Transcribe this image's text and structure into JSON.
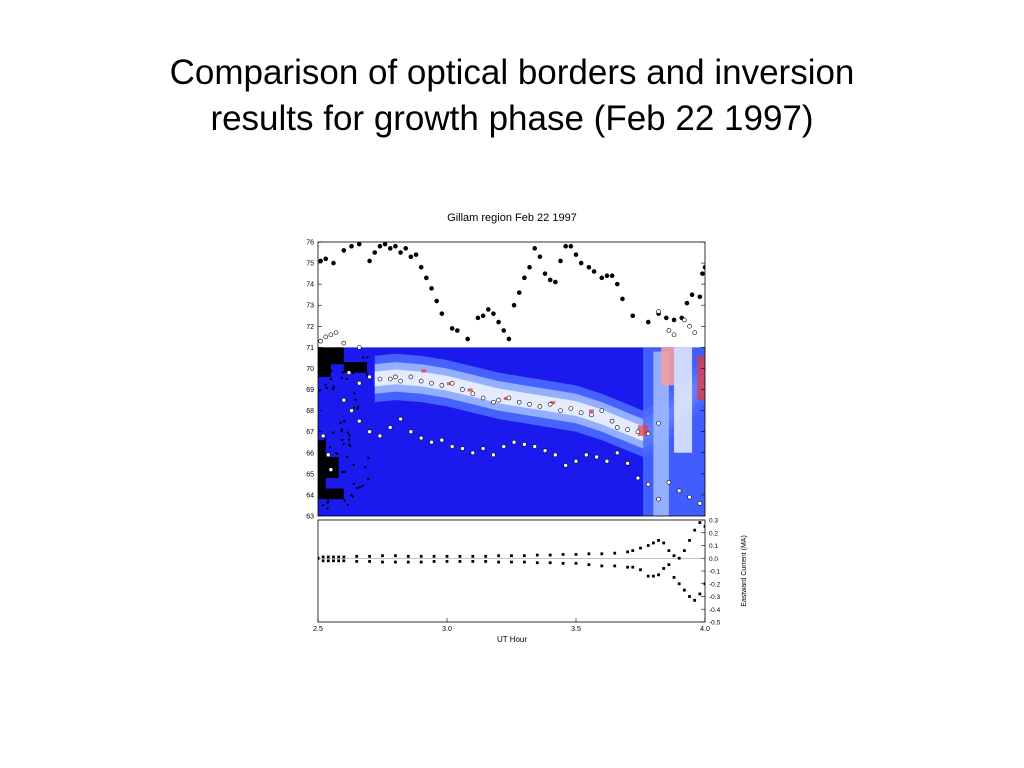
{
  "slide": {
    "title_line1": "Comparison of optical borders and inversion",
    "title_line2": "results for growth phase (Feb 22 1997)"
  },
  "chart_data": {
    "type": "scatter",
    "title": "Gillam region Feb 22 1997",
    "xlabel": "UT Hour",
    "xlim": [
      2.5,
      4.0
    ],
    "x_ticks": [
      "2.5",
      "3.0",
      "3.5",
      "4.0"
    ],
    "colors": {
      "background_blue": "#1a1aee",
      "mid_blue": "#4a6aff",
      "light_blue": "#9db8ff",
      "white_band": "#e8eeff",
      "red": "#e83a3a",
      "pink": "#f2a0a0"
    },
    "top_panel": {
      "ylim": [
        63,
        76
      ],
      "y_ticks": [
        "63",
        "64",
        "65",
        "66",
        "67",
        "68",
        "69",
        "70",
        "71",
        "72",
        "73",
        "74",
        "75",
        "76"
      ],
      "image_extent": {
        "x": [
          2.5,
          4.0
        ],
        "y": [
          63,
          71
        ]
      },
      "band_centerline": {
        "x": [
          2.72,
          2.8,
          2.9,
          3.0,
          3.1,
          3.2,
          3.3,
          3.4,
          3.5,
          3.6,
          3.7,
          3.76,
          3.82,
          3.88,
          3.95,
          4.0
        ],
        "y": [
          69.5,
          69.6,
          69.5,
          69.3,
          69.0,
          68.7,
          68.5,
          68.3,
          68.1,
          67.7,
          67.2,
          66.9,
          67.3,
          68.0,
          68.8,
          69.5
        ]
      },
      "series": [
        {
          "name": "",
          "marker": "filled",
          "points": [
            [
              2.51,
              75.1
            ],
            [
              2.53,
              75.2
            ],
            [
              2.56,
              75.0
            ],
            [
              2.6,
              75.6
            ],
            [
              2.63,
              75.8
            ],
            [
              2.66,
              75.9
            ],
            [
              2.7,
              75.1
            ],
            [
              2.72,
              75.5
            ],
            [
              2.74,
              75.8
            ],
            [
              2.76,
              75.9
            ],
            [
              2.78,
              75.7
            ],
            [
              2.8,
              75.8
            ],
            [
              2.82,
              75.5
            ],
            [
              2.84,
              75.7
            ],
            [
              2.86,
              75.3
            ],
            [
              2.88,
              75.4
            ],
            [
              2.9,
              74.8
            ],
            [
              2.92,
              74.3
            ],
            [
              2.94,
              73.8
            ],
            [
              2.96,
              73.2
            ],
            [
              2.98,
              72.6
            ],
            [
              3.02,
              71.9
            ],
            [
              3.04,
              71.8
            ],
            [
              3.08,
              71.4
            ],
            [
              3.12,
              72.4
            ],
            [
              3.14,
              72.5
            ],
            [
              3.16,
              72.8
            ],
            [
              3.18,
              72.6
            ],
            [
              3.2,
              72.2
            ],
            [
              3.22,
              71.8
            ],
            [
              3.24,
              71.4
            ],
            [
              3.26,
              73.0
            ],
            [
              3.28,
              73.6
            ],
            [
              3.3,
              74.3
            ],
            [
              3.32,
              74.8
            ],
            [
              3.34,
              75.7
            ],
            [
              3.36,
              75.3
            ],
            [
              3.38,
              74.5
            ],
            [
              3.4,
              74.2
            ],
            [
              3.42,
              74.1
            ],
            [
              3.44,
              75.1
            ],
            [
              3.46,
              75.8
            ],
            [
              3.48,
              75.8
            ],
            [
              3.5,
              75.4
            ],
            [
              3.52,
              75.0
            ],
            [
              3.55,
              74.8
            ],
            [
              3.57,
              74.6
            ],
            [
              3.6,
              74.3
            ],
            [
              3.62,
              74.4
            ],
            [
              3.64,
              74.4
            ],
            [
              3.66,
              74.0
            ],
            [
              3.68,
              73.3
            ],
            [
              3.72,
              72.5
            ],
            [
              3.78,
              72.2
            ],
            [
              3.82,
              72.6
            ],
            [
              3.85,
              72.4
            ],
            [
              3.88,
              72.3
            ],
            [
              3.91,
              72.4
            ],
            [
              3.93,
              73.1
            ],
            [
              3.95,
              73.5
            ],
            [
              3.98,
              73.4
            ],
            [
              3.99,
              74.5
            ],
            [
              4.0,
              74.8
            ]
          ]
        },
        {
          "name": "",
          "marker": "open",
          "points": [
            [
              2.51,
              71.3
            ],
            [
              2.53,
              71.5
            ],
            [
              2.55,
              71.6
            ],
            [
              2.57,
              71.7
            ],
            [
              2.6,
              71.2
            ],
            [
              2.66,
              71.0
            ],
            [
              3.82,
              72.7
            ],
            [
              3.86,
              71.8
            ],
            [
              3.88,
              71.6
            ],
            [
              3.92,
              72.3
            ],
            [
              3.94,
              72.0
            ],
            [
              3.96,
              71.7
            ]
          ]
        },
        {
          "name": "",
          "marker": "open",
          "points": [
            [
              2.62,
              69.8
            ],
            [
              2.66,
              69.3
            ],
            [
              2.7,
              69.6
            ],
            [
              2.74,
              69.5
            ],
            [
              2.78,
              69.5
            ],
            [
              2.8,
              69.6
            ],
            [
              2.82,
              69.4
            ],
            [
              2.86,
              69.6
            ],
            [
              2.9,
              69.4
            ],
            [
              2.94,
              69.3
            ],
            [
              2.98,
              69.2
            ],
            [
              3.02,
              69.3
            ],
            [
              3.06,
              69.0
            ],
            [
              3.1,
              68.8
            ],
            [
              3.14,
              68.6
            ],
            [
              3.18,
              68.4
            ],
            [
              3.2,
              68.5
            ],
            [
              3.24,
              68.6
            ],
            [
              3.28,
              68.4
            ],
            [
              3.32,
              68.3
            ],
            [
              3.36,
              68.2
            ],
            [
              3.4,
              68.3
            ],
            [
              3.44,
              68.0
            ],
            [
              3.48,
              68.1
            ],
            [
              3.52,
              67.9
            ],
            [
              3.56,
              67.8
            ],
            [
              3.6,
              68.0
            ],
            [
              3.64,
              67.5
            ],
            [
              3.66,
              67.2
            ],
            [
              3.7,
              67.1
            ],
            [
              3.74,
              67.0
            ],
            [
              3.78,
              66.9
            ],
            [
              3.82,
              67.4
            ]
          ]
        },
        {
          "name": "",
          "marker": "open",
          "points": [
            [
              2.6,
              68.5
            ],
            [
              2.63,
              68.0
            ],
            [
              2.66,
              67.5
            ],
            [
              2.7,
              67.0
            ],
            [
              2.74,
              66.8
            ],
            [
              2.78,
              67.2
            ],
            [
              2.82,
              67.6
            ],
            [
              2.86,
              67.0
            ],
            [
              2.9,
              66.7
            ],
            [
              2.94,
              66.5
            ],
            [
              2.98,
              66.6
            ],
            [
              3.02,
              66.3
            ],
            [
              3.06,
              66.2
            ],
            [
              3.1,
              66.0
            ],
            [
              3.14,
              66.2
            ],
            [
              3.18,
              65.9
            ],
            [
              3.22,
              66.3
            ],
            [
              3.26,
              66.5
            ],
            [
              3.3,
              66.4
            ],
            [
              3.34,
              66.3
            ],
            [
              3.38,
              66.1
            ],
            [
              3.42,
              65.9
            ],
            [
              3.46,
              65.4
            ],
            [
              3.5,
              65.6
            ],
            [
              3.54,
              65.9
            ],
            [
              3.58,
              65.8
            ],
            [
              3.62,
              65.6
            ],
            [
              3.66,
              66.0
            ],
            [
              3.7,
              65.5
            ],
            [
              3.74,
              64.8
            ],
            [
              3.78,
              64.5
            ],
            [
              3.82,
              63.8
            ],
            [
              3.86,
              64.6
            ],
            [
              3.9,
              64.2
            ],
            [
              3.94,
              63.9
            ],
            [
              3.98,
              63.6
            ],
            [
              2.52,
              66.8
            ],
            [
              2.54,
              65.9
            ],
            [
              2.55,
              65.2
            ]
          ]
        }
      ]
    },
    "bottom_panel": {
      "ylabel": "Eastward Current (MA)",
      "ylim": [
        -0.5,
        0.3
      ],
      "y_ticks": [
        "0.3",
        "0.2",
        "0.1",
        "0.0",
        "-0.1",
        "-0.2",
        "-0.3",
        "-0.4",
        "-0.5"
      ],
      "zero_line": true,
      "series": [
        {
          "name": "",
          "x": [
            2.5,
            2.52,
            2.54,
            2.56,
            2.58,
            2.6,
            2.65,
            2.7,
            2.75,
            2.8,
            2.85,
            2.9,
            2.95,
            3.0,
            3.05,
            3.1,
            3.15,
            3.2,
            3.25,
            3.3,
            3.35,
            3.4,
            3.45,
            3.5,
            3.55,
            3.6,
            3.65,
            3.7,
            3.72,
            3.75,
            3.78,
            3.8,
            3.82,
            3.84,
            3.86,
            3.88,
            3.9,
            3.92,
            3.94,
            3.96,
            3.98,
            4.0
          ],
          "y": [
            0.0,
            0.01,
            0.01,
            0.01,
            0.01,
            0.01,
            0.015,
            0.015,
            0.02,
            0.02,
            0.015,
            0.015,
            0.015,
            0.015,
            0.015,
            0.015,
            0.015,
            0.02,
            0.02,
            0.02,
            0.025,
            0.025,
            0.03,
            0.03,
            0.035,
            0.035,
            0.04,
            0.05,
            0.06,
            0.08,
            0.1,
            0.12,
            0.14,
            0.12,
            0.06,
            0.02,
            0.0,
            0.06,
            0.14,
            0.22,
            0.28,
            0.25
          ]
        },
        {
          "name": "",
          "x": [
            2.5,
            2.52,
            2.54,
            2.56,
            2.58,
            2.6,
            2.65,
            2.7,
            2.75,
            2.8,
            2.85,
            2.9,
            2.95,
            3.0,
            3.05,
            3.1,
            3.15,
            3.2,
            3.25,
            3.3,
            3.35,
            3.4,
            3.45,
            3.5,
            3.55,
            3.6,
            3.65,
            3.7,
            3.72,
            3.75,
            3.78,
            3.8,
            3.82,
            3.84,
            3.86,
            3.88,
            3.9,
            3.92,
            3.94,
            3.96,
            3.98,
            4.0
          ],
          "y": [
            0.0,
            -0.02,
            -0.02,
            -0.02,
            -0.02,
            -0.02,
            -0.025,
            -0.025,
            -0.03,
            -0.03,
            -0.03,
            -0.03,
            -0.025,
            -0.025,
            -0.025,
            -0.025,
            -0.025,
            -0.03,
            -0.03,
            -0.03,
            -0.035,
            -0.035,
            -0.04,
            -0.04,
            -0.05,
            -0.06,
            -0.06,
            -0.07,
            -0.07,
            -0.09,
            -0.14,
            -0.14,
            -0.13,
            -0.08,
            -0.05,
            -0.15,
            -0.2,
            -0.25,
            -0.3,
            -0.33,
            -0.28,
            -0.2
          ]
        }
      ]
    }
  }
}
